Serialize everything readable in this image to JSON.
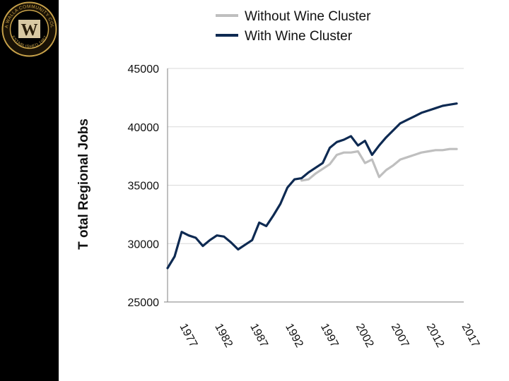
{
  "logo": {
    "ring_text_top": "WALLA WALLA COMMUNITY COLLEGE",
    "ring_text_bottom": "ESTABLISHED 1967",
    "emblem_letter": "W"
  },
  "chart_data": {
    "type": "line",
    "title": "",
    "xlabel": "",
    "ylabel": "T otal Regional Jobs",
    "ylim": [
      25000,
      45000
    ],
    "yticks": [
      "25000",
      "30000",
      "35000",
      "40000",
      "45000"
    ],
    "xlim": [
      1975,
      2017
    ],
    "xticks": [
      "1977",
      "1982",
      "1987",
      "1992",
      "1997",
      "2002",
      "2007",
      "2012",
      "2017"
    ],
    "grid": true,
    "legend_position": "top",
    "series": [
      {
        "name": "Without Wine Cluster",
        "color": "#bfbfbf",
        "x": [
          1994,
          1995,
          1996,
          1997,
          1998,
          1999,
          2000,
          2001,
          2002,
          2003,
          2004,
          2005,
          2006,
          2007,
          2008,
          2009,
          2010,
          2011,
          2012,
          2013,
          2014,
          2015,
          2016
        ],
        "y": [
          35400,
          35500,
          36000,
          36400,
          36800,
          37600,
          37800,
          37800,
          37900,
          36900,
          37200,
          35700,
          36300,
          36700,
          37200,
          37400,
          37600,
          37800,
          37900,
          38000,
          38000,
          38100,
          38100
        ]
      },
      {
        "name": "With Wine Cluster",
        "color": "#0e2a52",
        "x": [
          1975,
          1976,
          1977,
          1978,
          1979,
          1980,
          1981,
          1982,
          1983,
          1984,
          1985,
          1986,
          1987,
          1988,
          1989,
          1990,
          1991,
          1992,
          1993,
          1994,
          1995,
          1996,
          1997,
          1998,
          1999,
          2000,
          2001,
          2002,
          2003,
          2004,
          2005,
          2006,
          2007,
          2008,
          2009,
          2010,
          2011,
          2012,
          2013,
          2014,
          2015,
          2016
        ],
        "y": [
          27900,
          28900,
          31000,
          30700,
          30500,
          29800,
          30300,
          30700,
          30600,
          30100,
          29500,
          29900,
          30300,
          31800,
          31500,
          32400,
          33400,
          34800,
          35500,
          35600,
          36100,
          36500,
          36900,
          38200,
          38700,
          38900,
          39200,
          38400,
          38800,
          37600,
          38400,
          39100,
          39700,
          40300,
          40600,
          40900,
          41200,
          41400,
          41600,
          41800,
          41900,
          42000
        ]
      }
    ]
  }
}
